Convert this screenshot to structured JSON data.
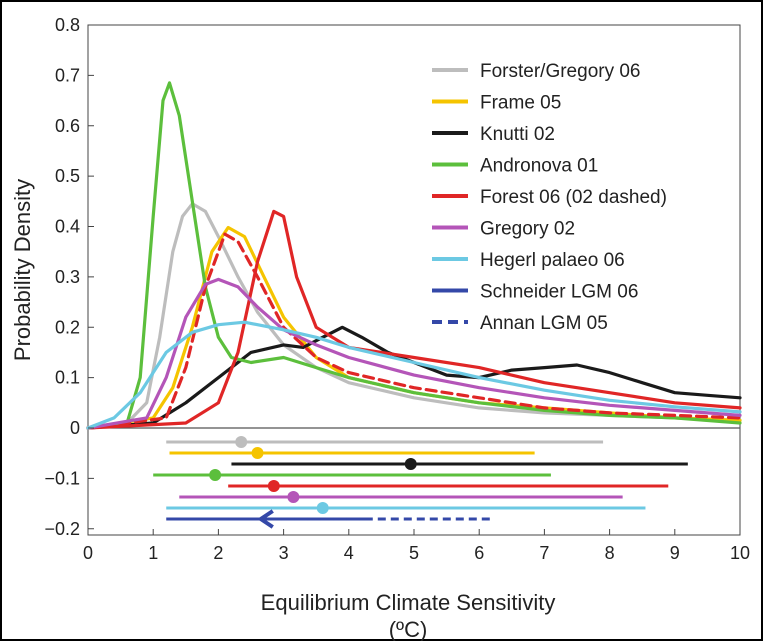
{
  "chart_data": {
    "type": "line",
    "title": "",
    "xlabel": "Equilibrium Climate Sensitivity",
    "xlabel_units": "(ºC)",
    "ylabel": "Probability Density",
    "xlim": [
      0,
      10
    ],
    "ylim": [
      -0.22,
      0.8
    ],
    "x_ticks": [
      0,
      1,
      2,
      3,
      4,
      5,
      6,
      7,
      8,
      9,
      10
    ],
    "y_ticks": [
      -0.2,
      -0.1,
      0,
      0.1,
      0.2,
      0.3,
      0.4,
      0.5,
      0.6,
      0.7,
      0.8
    ],
    "y_tick_labels": [
      "−0.2",
      "−0.1",
      "0",
      "0.1",
      "0.2",
      "0.3",
      "0.4",
      "0.5",
      "0.6",
      "0.7",
      "0.8"
    ],
    "legend_position": "top-right",
    "series": [
      {
        "name": "Forster/Gregory 06",
        "color": "#bdbdbd",
        "dash": false,
        "points": [
          [
            0,
            0
          ],
          [
            0.6,
            0.01
          ],
          [
            0.9,
            0.05
          ],
          [
            1.1,
            0.18
          ],
          [
            1.3,
            0.35
          ],
          [
            1.45,
            0.42
          ],
          [
            1.6,
            0.445
          ],
          [
            1.8,
            0.43
          ],
          [
            2.0,
            0.38
          ],
          [
            2.3,
            0.3
          ],
          [
            2.6,
            0.23
          ],
          [
            3.0,
            0.165
          ],
          [
            3.5,
            0.12
          ],
          [
            4.0,
            0.09
          ],
          [
            5.0,
            0.06
          ],
          [
            6.0,
            0.04
          ],
          [
            7.0,
            0.03
          ],
          [
            8.0,
            0.025
          ],
          [
            9.0,
            0.02
          ],
          [
            10,
            0.015
          ]
        ],
        "range": [
          1.2,
          7.9
        ],
        "median": 2.35
      },
      {
        "name": "Frame 05",
        "color": "#f5c400",
        "dash": false,
        "points": [
          [
            0,
            0
          ],
          [
            1.0,
            0.02
          ],
          [
            1.3,
            0.08
          ],
          [
            1.6,
            0.2
          ],
          [
            1.9,
            0.35
          ],
          [
            2.15,
            0.398
          ],
          [
            2.4,
            0.38
          ],
          [
            2.7,
            0.3
          ],
          [
            3.0,
            0.22
          ],
          [
            3.5,
            0.14
          ],
          [
            4.0,
            0.1
          ],
          [
            5.0,
            0.07
          ],
          [
            6.0,
            0.05
          ],
          [
            7.0,
            0.04
          ],
          [
            8.0,
            0.03
          ],
          [
            9.0,
            0.02
          ],
          [
            10,
            0.015
          ]
        ],
        "range": [
          1.25,
          6.85
        ],
        "median": 2.6
      },
      {
        "name": "Knutti 02",
        "color": "#1a1a1a",
        "dash": false,
        "points": [
          [
            0,
            0
          ],
          [
            1.0,
            0.01
          ],
          [
            1.5,
            0.05
          ],
          [
            2.0,
            0.1
          ],
          [
            2.5,
            0.15
          ],
          [
            3.0,
            0.165
          ],
          [
            3.3,
            0.16
          ],
          [
            3.6,
            0.18
          ],
          [
            3.9,
            0.2
          ],
          [
            4.2,
            0.18
          ],
          [
            4.6,
            0.15
          ],
          [
            5.0,
            0.13
          ],
          [
            5.5,
            0.105
          ],
          [
            6.0,
            0.1
          ],
          [
            6.5,
            0.115
          ],
          [
            7.0,
            0.12
          ],
          [
            7.5,
            0.125
          ],
          [
            8.0,
            0.11
          ],
          [
            8.5,
            0.09
          ],
          [
            9.0,
            0.07
          ],
          [
            9.5,
            0.065
          ],
          [
            10,
            0.06
          ]
        ],
        "range": [
          2.2,
          9.2
        ],
        "median": 4.95
      },
      {
        "name": "Andronova 01",
        "color": "#5cbf3c",
        "dash": false,
        "points": [
          [
            0,
            0
          ],
          [
            0.6,
            0.01
          ],
          [
            0.8,
            0.1
          ],
          [
            1.0,
            0.42
          ],
          [
            1.15,
            0.65
          ],
          [
            1.25,
            0.685
          ],
          [
            1.4,
            0.62
          ],
          [
            1.6,
            0.45
          ],
          [
            1.8,
            0.28
          ],
          [
            2.0,
            0.18
          ],
          [
            2.2,
            0.14
          ],
          [
            2.5,
            0.13
          ],
          [
            3.0,
            0.14
          ],
          [
            3.5,
            0.12
          ],
          [
            4.0,
            0.1
          ],
          [
            5.0,
            0.07
          ],
          [
            6.0,
            0.05
          ],
          [
            7.0,
            0.035
          ],
          [
            8.0,
            0.025
          ],
          [
            9.0,
            0.02
          ],
          [
            10,
            0.01
          ]
        ],
        "range": [
          1.0,
          7.1
        ],
        "median": 1.95
      },
      {
        "name": "Forest 06 (02 dashed)",
        "color": "#e02626",
        "dash": false,
        "points": [
          [
            0,
            0
          ],
          [
            1.5,
            0.01
          ],
          [
            2.0,
            0.05
          ],
          [
            2.3,
            0.15
          ],
          [
            2.6,
            0.33
          ],
          [
            2.85,
            0.43
          ],
          [
            3.0,
            0.42
          ],
          [
            3.2,
            0.3
          ],
          [
            3.5,
            0.2
          ],
          [
            4.0,
            0.16
          ],
          [
            5.0,
            0.14
          ],
          [
            6.0,
            0.12
          ],
          [
            7.0,
            0.09
          ],
          [
            8.0,
            0.07
          ],
          [
            9.0,
            0.05
          ],
          [
            10,
            0.04
          ]
        ],
        "range": [
          2.15,
          8.9
        ],
        "median": 2.85
      },
      {
        "name": "",
        "color": "#e02626",
        "dash": true,
        "points": [
          [
            0,
            0
          ],
          [
            1.2,
            0.02
          ],
          [
            1.5,
            0.12
          ],
          [
            1.8,
            0.28
          ],
          [
            2.1,
            0.385
          ],
          [
            2.3,
            0.37
          ],
          [
            2.6,
            0.3
          ],
          [
            3.0,
            0.2
          ],
          [
            3.5,
            0.14
          ],
          [
            4.0,
            0.11
          ],
          [
            5.0,
            0.08
          ],
          [
            6.0,
            0.06
          ],
          [
            7.0,
            0.04
          ],
          [
            8.0,
            0.03
          ],
          [
            9.0,
            0.025
          ],
          [
            10,
            0.02
          ]
        ],
        "range": null,
        "median": null
      },
      {
        "name": "Gregory 02",
        "color": "#b455b8",
        "dash": false,
        "points": [
          [
            0,
            0
          ],
          [
            0.9,
            0.02
          ],
          [
            1.2,
            0.1
          ],
          [
            1.5,
            0.22
          ],
          [
            1.8,
            0.285
          ],
          [
            2.0,
            0.295
          ],
          [
            2.3,
            0.28
          ],
          [
            2.6,
            0.24
          ],
          [
            3.0,
            0.195
          ],
          [
            3.5,
            0.165
          ],
          [
            4.0,
            0.14
          ],
          [
            5.0,
            0.105
          ],
          [
            6.0,
            0.08
          ],
          [
            7.0,
            0.06
          ],
          [
            8.0,
            0.045
          ],
          [
            9.0,
            0.035
          ],
          [
            10,
            0.025
          ]
        ],
        "range": [
          1.4,
          8.2
        ],
        "median": 3.15
      },
      {
        "name": "Hegerl palaeo 06",
        "color": "#6cc9e3",
        "dash": false,
        "points": [
          [
            0,
            0
          ],
          [
            0.4,
            0.02
          ],
          [
            0.8,
            0.07
          ],
          [
            1.2,
            0.15
          ],
          [
            1.6,
            0.19
          ],
          [
            2.0,
            0.205
          ],
          [
            2.4,
            0.21
          ],
          [
            3.0,
            0.195
          ],
          [
            3.5,
            0.18
          ],
          [
            4.0,
            0.16
          ],
          [
            5.0,
            0.13
          ],
          [
            6.0,
            0.1
          ],
          [
            7.0,
            0.075
          ],
          [
            8.0,
            0.055
          ],
          [
            9.0,
            0.042
          ],
          [
            10,
            0.032
          ]
        ],
        "range": [
          1.2,
          8.55
        ],
        "median": 3.6
      },
      {
        "name": "Schneider LGM 06",
        "color": "#3448a8",
        "dash": false,
        "points": [],
        "range": [
          1.2,
          4.3
        ],
        "median": null
      },
      {
        "name": "Annan LGM 05",
        "color": "#3448a8",
        "dash": true,
        "points": [],
        "range": [
          2.65,
          6.2
        ],
        "median": null
      }
    ]
  }
}
